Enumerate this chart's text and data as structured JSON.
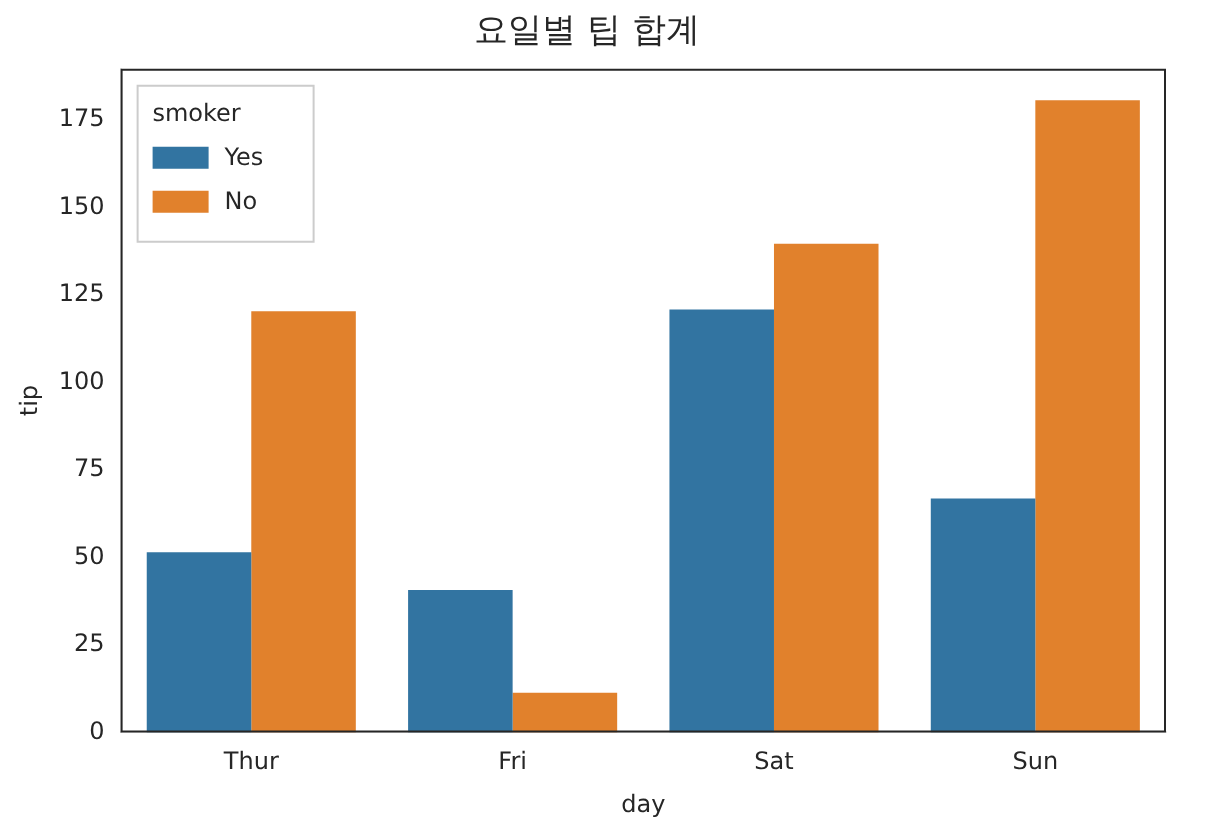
{
  "chart_data": {
    "type": "bar",
    "title": "요일별 팁 합계",
    "xlabel": "day",
    "ylabel": "tip",
    "categories": [
      "Thur",
      "Fri",
      "Sat",
      "Sun"
    ],
    "series": [
      {
        "name": "Yes",
        "color": "#3274a1",
        "values": [
          51.5,
          40.7,
          120.8,
          66.8
        ]
      },
      {
        "name": "No",
        "color": "#e1812c",
        "values": [
          120.3,
          11.3,
          139.6,
          180.6
        ]
      }
    ],
    "legend_title": "smoker",
    "legend": "top left",
    "grid": false,
    "ylim": [
      0,
      189.6
    ],
    "yticks": [
      0,
      25,
      50,
      75,
      100,
      125,
      150,
      175
    ]
  }
}
